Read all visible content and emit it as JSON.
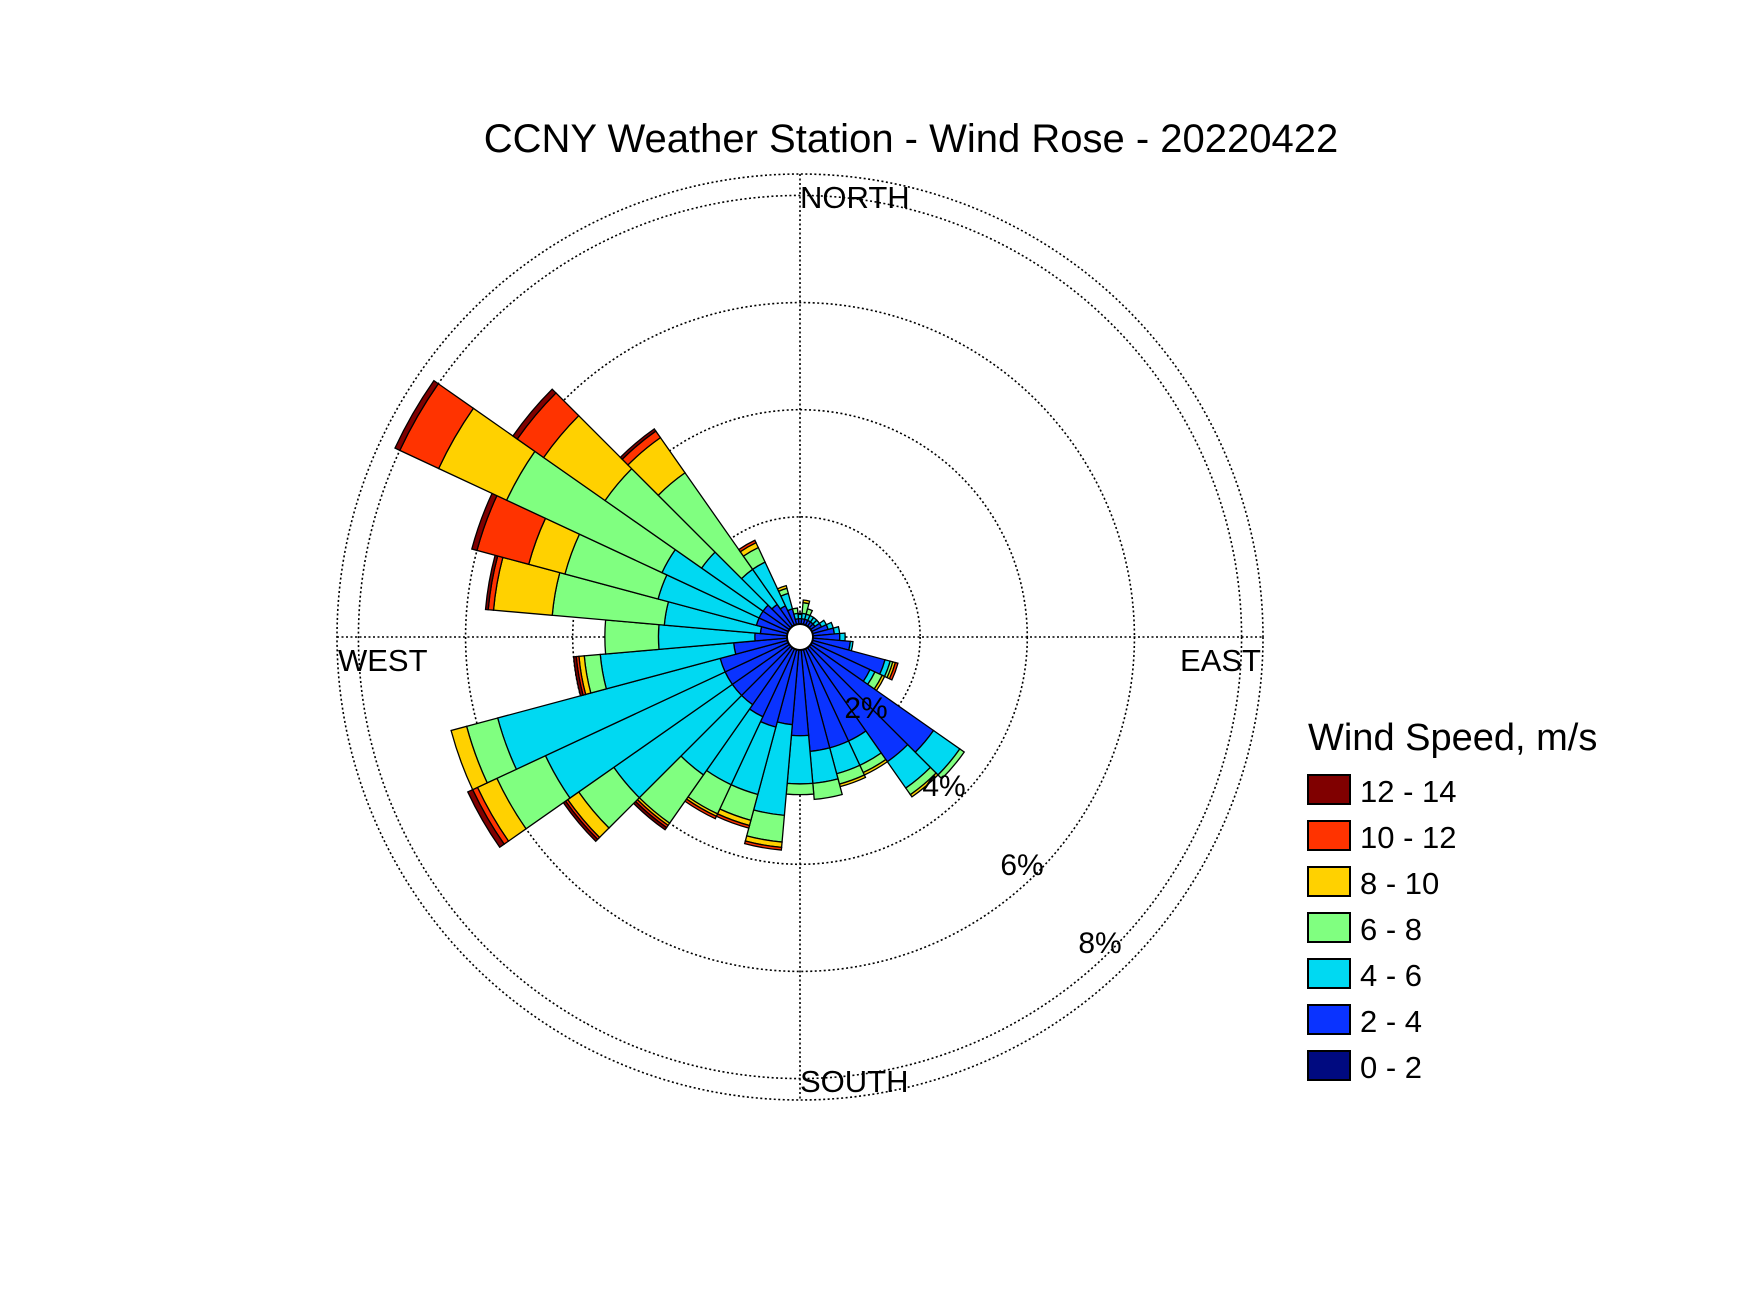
{
  "chart_data": {
    "type": "wind-rose",
    "title": "CCNY Weather Station - Wind Rose - 20220422",
    "direction_labels": {
      "north": "NORTH",
      "south": "SOUTH",
      "east": "EAST",
      "west": "WEST"
    },
    "radial_unit": "%",
    "radial_ticks": [
      2,
      4,
      6,
      8
    ],
    "radial_tick_labels": [
      "2%",
      "4%",
      "6%",
      "8%"
    ],
    "radial_max": 8.4,
    "legend": {
      "title": "Wind Speed, m/s",
      "placement": "right",
      "bins": [
        {
          "label": "12 - 14",
          "color": "#800000"
        },
        {
          "label": "10 - 12",
          "color": "#ff3300"
        },
        {
          "label": "8 - 10",
          "color": "#ffd100"
        },
        {
          "label": "6 - 8",
          "color": "#80ff80"
        },
        {
          "label": "4 - 6",
          "color": "#00d9f2"
        },
        {
          "label": "2 - 4",
          "color": "#0a33ff"
        },
        {
          "label": "0 - 2",
          "color": "#000a80"
        }
      ]
    },
    "sector_width_deg": 10,
    "sectors": [
      {
        "dir": 0,
        "cumulative": [
          0.0,
          0.1,
          0.18,
          0.2,
          0.2,
          0.2,
          0.2
        ]
      },
      {
        "dir": 10,
        "cumulative": [
          0.0,
          0.1,
          0.2,
          0.4,
          0.45,
          0.45,
          0.45
        ]
      },
      {
        "dir": 20,
        "cumulative": [
          0.0,
          0.1,
          0.2,
          0.3,
          0.3,
          0.3,
          0.3
        ]
      },
      {
        "dir": 30,
        "cumulative": [
          0.0,
          0.1,
          0.2,
          0.2,
          0.2,
          0.2,
          0.2
        ]
      },
      {
        "dir": 40,
        "cumulative": [
          0.0,
          0.1,
          0.2,
          0.2,
          0.2,
          0.2,
          0.2
        ]
      },
      {
        "dir": 50,
        "cumulative": [
          0.0,
          0.1,
          0.2,
          0.2,
          0.2,
          0.2,
          0.2
        ]
      },
      {
        "dir": 60,
        "cumulative": [
          0.0,
          0.2,
          0.3,
          0.3,
          0.3,
          0.3,
          0.3
        ]
      },
      {
        "dir": 70,
        "cumulative": [
          0.0,
          0.3,
          0.4,
          0.4,
          0.4,
          0.4,
          0.4
        ]
      },
      {
        "dir": 80,
        "cumulative": [
          0.0,
          0.4,
          0.5,
          0.5,
          0.5,
          0.5,
          0.5
        ]
      },
      {
        "dir": 90,
        "cumulative": [
          0.0,
          0.5,
          0.6,
          0.6,
          0.6,
          0.6,
          0.6
        ]
      },
      {
        "dir": 100,
        "cumulative": [
          0.0,
          0.7,
          0.75,
          0.75,
          0.75,
          0.75,
          0.75
        ]
      },
      {
        "dir": 110,
        "cumulative": [
          0.0,
          1.4,
          1.5,
          1.55,
          1.6,
          1.65,
          1.65
        ]
      },
      {
        "dir": 120,
        "cumulative": [
          0.0,
          1.2,
          1.3,
          1.45,
          1.5,
          1.5,
          1.5
        ]
      },
      {
        "dir": 130,
        "cumulative": [
          0.0,
          2.8,
          3.4,
          3.5,
          3.5,
          3.5,
          3.5
        ]
      },
      {
        "dir": 140,
        "cumulative": [
          0.0,
          2.6,
          3.2,
          3.35,
          3.4,
          3.4,
          3.4
        ]
      },
      {
        "dir": 150,
        "cumulative": [
          0.0,
          1.9,
          2.4,
          2.55,
          2.6,
          2.6,
          2.6
        ]
      },
      {
        "dir": 160,
        "cumulative": [
          0.0,
          1.9,
          2.4,
          2.6,
          2.65,
          2.65,
          2.65
        ]
      },
      {
        "dir": 170,
        "cumulative": [
          0.0,
          1.9,
          2.5,
          2.8,
          2.8,
          2.8,
          2.8
        ]
      },
      {
        "dir": 180,
        "cumulative": [
          0.0,
          1.6,
          2.5,
          2.7,
          2.7,
          2.7,
          2.7
        ]
      },
      {
        "dir": 190,
        "cumulative": [
          0.0,
          1.4,
          3.1,
          3.6,
          3.7,
          3.75,
          3.75
        ]
      },
      {
        "dir": 200,
        "cumulative": [
          0.0,
          1.5,
          2.8,
          3.3,
          3.4,
          3.45,
          3.45
        ]
      },
      {
        "dir": 210,
        "cumulative": [
          0.0,
          1.4,
          2.8,
          3.4,
          3.45,
          3.5,
          3.5
        ]
      },
      {
        "dir": 220,
        "cumulative": [
          0.0,
          1.3,
          2.9,
          4.0,
          4.05,
          4.1,
          4.15
        ]
      },
      {
        "dir": 230,
        "cumulative": [
          0.0,
          1.3,
          4.0,
          4.8,
          5.05,
          5.1,
          5.15
        ]
      },
      {
        "dir": 240,
        "cumulative": [
          0.0,
          1.3,
          5.0,
          6.0,
          6.4,
          6.5,
          6.6
        ]
      },
      {
        "dir": 250,
        "cumulative": [
          0.0,
          1.3,
          5.6,
          6.2,
          6.5,
          6.5,
          6.5
        ]
      },
      {
        "dir": 260,
        "cumulative": [
          0.0,
          1.0,
          3.5,
          3.8,
          3.9,
          3.95,
          4.0
        ]
      },
      {
        "dir": 270,
        "cumulative": [
          0.0,
          0.6,
          2.4,
          3.4,
          3.4,
          3.4,
          3.4
        ]
      },
      {
        "dir": 280,
        "cumulative": [
          0.0,
          0.5,
          2.3,
          4.4,
          5.5,
          5.6,
          5.65
        ]
      },
      {
        "dir": 290,
        "cumulative": [
          0.0,
          0.6,
          2.5,
          4.3,
          5.0,
          6.0,
          6.1
        ]
      },
      {
        "dir": 300,
        "cumulative": [
          0.0,
          0.6,
          2.6,
          5.8,
          7.2,
          8.0,
          8.1
        ]
      },
      {
        "dir": 310,
        "cumulative": [
          0.0,
          0.6,
          2.0,
          4.2,
          5.6,
          6.2,
          6.3
        ]
      },
      {
        "dir": 320,
        "cumulative": [
          0.0,
          0.5,
          1.3,
          3.5,
          4.3,
          4.45,
          4.5
        ]
      },
      {
        "dir": 330,
        "cumulative": [
          0.0,
          0.4,
          1.3,
          1.6,
          1.7,
          1.75,
          1.75
        ]
      },
      {
        "dir": 340,
        "cumulative": [
          0.0,
          0.3,
          0.6,
          0.7,
          0.75,
          0.75,
          0.75
        ]
      },
      {
        "dir": 350,
        "cumulative": [
          0.0,
          0.1,
          0.2,
          0.3,
          0.3,
          0.3,
          0.3
        ]
      }
    ]
  }
}
